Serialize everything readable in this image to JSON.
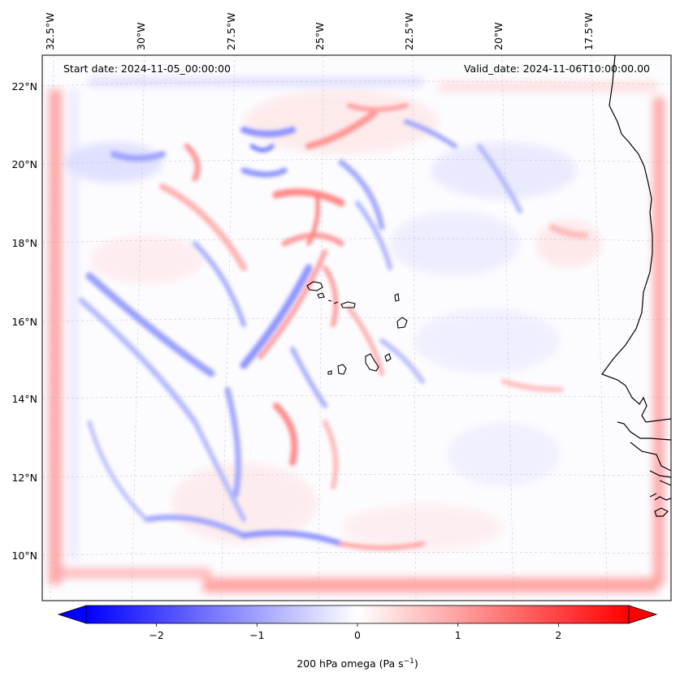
{
  "map": {
    "start_label": "Start date: 2024-11-05_00:00:00",
    "valid_label": "Valid_date: 2024-11-06T10:00:00.00",
    "lon_labels": [
      "32.5°W",
      "30°W",
      "27.5°W",
      "25°W",
      "22.5°W",
      "20°W",
      "17.5°W"
    ],
    "lat_labels": [
      "22°N",
      "20°N",
      "18°N",
      "16°N",
      "14°N",
      "12°N",
      "10°N"
    ],
    "field": "200 hPa omega",
    "colormap": "bwr",
    "region": "Cabo Verde islands and West African coast"
  },
  "colorbar": {
    "ticks": [
      "−2",
      "−1",
      "0",
      "1",
      "2"
    ],
    "tick_values": [
      -2,
      -1,
      0,
      1,
      2
    ],
    "range": [
      -2.7,
      2.7
    ],
    "label_main": "200 hPa omega (Pa s",
    "label_sup": "−1",
    "label_end": ")",
    "colors": {
      "negative": "#0000ff",
      "zero": "#ffffff",
      "positive": "#ff0000"
    }
  }
}
